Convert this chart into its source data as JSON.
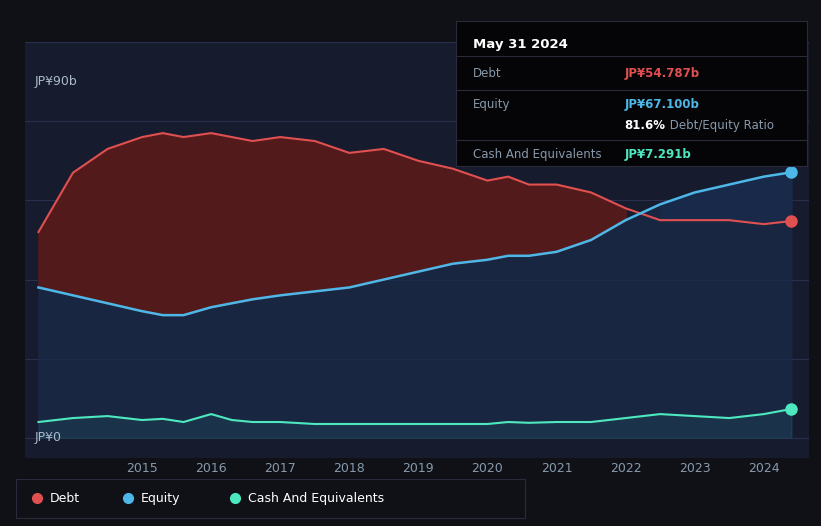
{
  "bg_color": "#0f1117",
  "plot_bg_color": "#161b2e",
  "y_label_top": "JP¥90b",
  "y_label_bottom": "JP¥0",
  "debt_color": "#e05050",
  "equity_color": "#4db8e8",
  "cash_color": "#4de8c0",
  "debt_fill_color": "#5a1a1a",
  "equity_fill_color": "#1a2a4a",
  "ylim_min": -5,
  "ylim_max": 100,
  "info_box": {
    "date": "May 31 2024",
    "debt_label": "Debt",
    "debt_value": "JP¥54.787b",
    "equity_label": "Equity",
    "equity_value": "JP¥67.100b",
    "ratio_bold": "81.6%",
    "ratio_text": " Debt/Equity Ratio",
    "cash_label": "Cash And Equivalents",
    "cash_value": "JP¥7.291b"
  },
  "debt_data": {
    "years": [
      2013.5,
      2014.0,
      2014.5,
      2015.0,
      2015.3,
      2015.6,
      2016.0,
      2016.3,
      2016.6,
      2017.0,
      2017.5,
      2018.0,
      2018.5,
      2019.0,
      2019.5,
      2020.0,
      2020.3,
      2020.6,
      2021.0,
      2021.5,
      2022.0,
      2022.5,
      2023.0,
      2023.5,
      2024.0,
      2024.4
    ],
    "values": [
      52,
      67,
      73,
      76,
      77,
      76,
      77,
      76,
      75,
      76,
      75,
      72,
      73,
      70,
      68,
      65,
      66,
      64,
      64,
      62,
      58,
      55,
      55,
      55,
      54,
      54.787
    ]
  },
  "equity_data": {
    "years": [
      2013.5,
      2014.0,
      2014.5,
      2015.0,
      2015.3,
      2015.6,
      2016.0,
      2016.3,
      2016.6,
      2017.0,
      2017.5,
      2018.0,
      2018.5,
      2019.0,
      2019.5,
      2020.0,
      2020.3,
      2020.6,
      2021.0,
      2021.5,
      2022.0,
      2022.5,
      2023.0,
      2023.5,
      2024.0,
      2024.4
    ],
    "values": [
      38,
      36,
      34,
      32,
      31,
      31,
      33,
      34,
      35,
      36,
      37,
      38,
      40,
      42,
      44,
      45,
      46,
      46,
      47,
      50,
      55,
      59,
      62,
      64,
      66,
      67.1
    ]
  },
  "cash_data": {
    "years": [
      2013.5,
      2014.0,
      2014.5,
      2015.0,
      2015.3,
      2015.6,
      2016.0,
      2016.3,
      2016.6,
      2017.0,
      2017.5,
      2018.0,
      2018.5,
      2019.0,
      2019.5,
      2020.0,
      2020.3,
      2020.6,
      2021.0,
      2021.5,
      2022.0,
      2022.5,
      2023.0,
      2023.5,
      2024.0,
      2024.4
    ],
    "values": [
      4,
      5,
      5.5,
      4.5,
      4.8,
      4.0,
      6.0,
      4.5,
      4.0,
      4.0,
      3.5,
      3.5,
      3.5,
      3.5,
      3.5,
      3.5,
      4.0,
      3.8,
      4.0,
      4.0,
      5.0,
      6.0,
      5.5,
      5.0,
      6.0,
      7.291
    ]
  },
  "legend_items": [
    {
      "label": "Debt",
      "color": "#e05050"
    },
    {
      "label": "Equity",
      "color": "#4db8e8"
    },
    {
      "label": "Cash And Equivalents",
      "color": "#4de8c0"
    }
  ]
}
